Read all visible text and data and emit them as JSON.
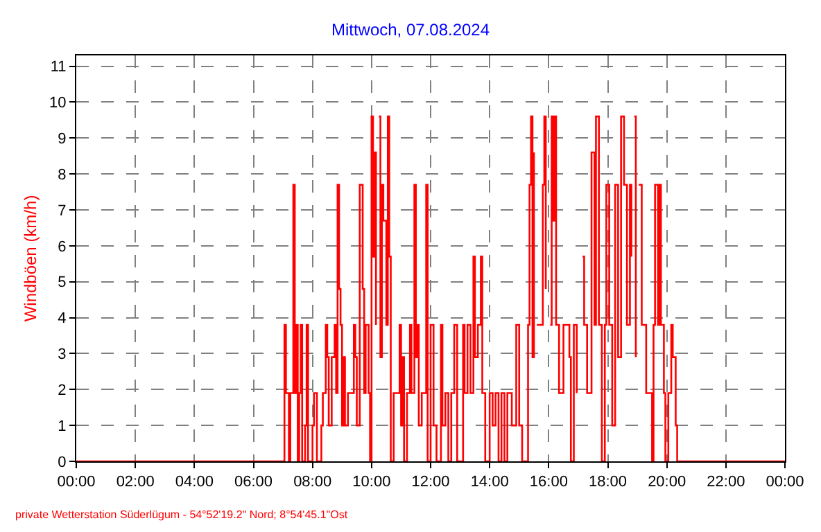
{
  "chart_data": {
    "type": "step",
    "title": "Mittwoch, 07.08.2024",
    "ylabel": "Windböen (km/h)",
    "annotations": [
      "private Wetterstation Süderlügum - 54°52'19.2\" Nord; 8°54'45.1\"Ost"
    ],
    "x": [
      0,
      7.05,
      7.1,
      7.2,
      7.25,
      7.35,
      7.4,
      7.45,
      7.5,
      7.55,
      7.6,
      7.65,
      7.75,
      7.8,
      7.85,
      8.0,
      8.05,
      8.15,
      8.3,
      8.35,
      8.45,
      8.5,
      8.55,
      8.65,
      8.75,
      8.8,
      8.85,
      8.9,
      8.95,
      9.0,
      9.05,
      9.1,
      9.2,
      9.4,
      9.45,
      9.5,
      9.6,
      9.7,
      9.75,
      9.8,
      9.9,
      9.95,
      10.0,
      10.05,
      10.1,
      10.15,
      10.2,
      10.25,
      10.3,
      10.35,
      10.4,
      10.5,
      10.55,
      10.6,
      10.65,
      10.75,
      10.95,
      11.0,
      11.05,
      11.1,
      11.2,
      11.3,
      11.35,
      11.45,
      11.5,
      11.55,
      11.6,
      11.7,
      11.85,
      11.9,
      12.0,
      12.1,
      12.2,
      12.35,
      12.4,
      12.5,
      12.6,
      12.7,
      12.8,
      12.9,
      13.1,
      13.15,
      13.25,
      13.35,
      13.45,
      13.5,
      13.6,
      13.7,
      13.75,
      13.85,
      14.0,
      14.1,
      14.2,
      14.3,
      14.4,
      14.5,
      14.6,
      14.75,
      14.9,
      15.0,
      15.1,
      15.3,
      15.35,
      15.4,
      15.45,
      15.5,
      15.55,
      15.6,
      15.8,
      15.85,
      15.9,
      16.0,
      16.05,
      16.1,
      16.15,
      16.2,
      16.25,
      16.35,
      16.5,
      16.7,
      16.75,
      16.85,
      16.95,
      17.1,
      17.15,
      17.2,
      17.3,
      17.45,
      17.55,
      17.6,
      17.7,
      17.8,
      17.9,
      17.95,
      18.05,
      18.15,
      18.25,
      18.35,
      18.45,
      18.55,
      18.65,
      18.75,
      18.8,
      18.85,
      18.9,
      18.95,
      19.0,
      19.05,
      19.15,
      19.3,
      19.5,
      19.55,
      19.6,
      19.7,
      19.75,
      19.8,
      19.9,
      19.95,
      20.05,
      20.15,
      20.2,
      20.3,
      20.35,
      24
    ],
    "values": [
      0,
      3.8,
      1.9,
      0,
      1.9,
      7.7,
      1.9,
      3.8,
      0,
      1.9,
      3.8,
      0,
      1.0,
      3.8,
      0,
      1.0,
      1.9,
      0,
      1.0,
      1.9,
      3.8,
      2.9,
      1.0,
      2.9,
      3.8,
      1.9,
      7.7,
      4.8,
      3.8,
      1.0,
      2.9,
      1.0,
      1.9,
      3.8,
      2.9,
      1.0,
      7.7,
      4.8,
      1.9,
      3.8,
      1.9,
      0,
      9.6,
      5.7,
      8.6,
      3.8,
      null,
      9.6,
      2.9,
      7.7,
      6.7,
      3.8,
      9.6,
      5.7,
      0,
      1.9,
      3.8,
      1.0,
      2.9,
      0,
      1.9,
      3.8,
      1.9,
      7.7,
      2.9,
      3.8,
      1.0,
      1.9,
      7.7,
      0,
      3.8,
      1.0,
      0,
      3.8,
      1.0,
      1.9,
      0,
      1.9,
      3.8,
      0,
      3.8,
      1.9,
      3.8,
      1.9,
      5.7,
      2.9,
      3.8,
      5.7,
      1.9,
      0,
      1.9,
      1.0,
      1.9,
      0,
      1.9,
      0,
      1.9,
      1.0,
      3.8,
      1.0,
      0,
      3.8,
      7.7,
      9.6,
      2.9,
      8.6,
      null,
      3.8,
      7.7,
      9.6,
      4.8,
      null,
      3.8,
      9.6,
      6.7,
      9.6,
      3.8,
      1.9,
      3.8,
      2.9,
      0,
      3.8,
      1.9,
      null,
      5.7,
      3.8,
      1.9,
      8.6,
      3.8,
      9.6,
      3.8,
      0,
      3.8,
      7.7,
      3.8,
      1.0,
      7.7,
      2.9,
      9.6,
      7.7,
      3.8,
      7.7,
      5.7,
      null,
      9.6,
      2.9,
      null,
      7.7,
      3.8,
      1.9,
      0,
      3.8,
      7.7,
      3.8,
      7.7,
      3.8,
      1.9,
      0,
      1.9,
      3.8,
      2.9,
      1.0,
      0,
      0
    ],
    "color": "#ff0000",
    "xlim": [
      0,
      24
    ],
    "xticks": [
      {
        "value": 0,
        "label": "00:00"
      },
      {
        "value": 2,
        "label": "02:00"
      },
      {
        "value": 4,
        "label": "04:00"
      },
      {
        "value": 6,
        "label": "06:00"
      },
      {
        "value": 8,
        "label": "08:00"
      },
      {
        "value": 10,
        "label": "10:00"
      },
      {
        "value": 12,
        "label": "12:00"
      },
      {
        "value": 14,
        "label": "14:00"
      },
      {
        "value": 16,
        "label": "16:00"
      },
      {
        "value": 18,
        "label": "18:00"
      },
      {
        "value": 20,
        "label": "20:00"
      },
      {
        "value": 22,
        "label": "22:00"
      },
      {
        "value": 24,
        "label": "00:00"
      }
    ],
    "ylim": [
      0,
      11.3
    ],
    "yticks": [
      0,
      1,
      2,
      3,
      4,
      5,
      6,
      7,
      8,
      9,
      10,
      11
    ],
    "grid": true
  }
}
